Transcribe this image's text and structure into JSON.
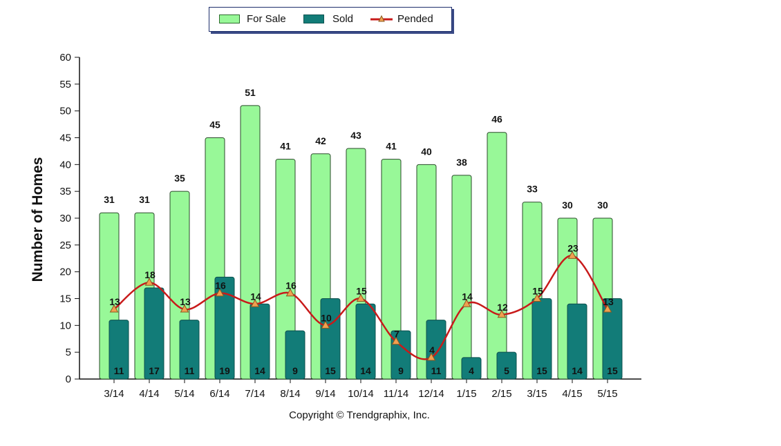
{
  "chart_data": {
    "type": "bar",
    "categories": [
      "3/14",
      "4/14",
      "5/14",
      "6/14",
      "7/14",
      "8/14",
      "9/14",
      "10/14",
      "11/14",
      "12/14",
      "1/15",
      "2/15",
      "3/15",
      "4/15",
      "5/15"
    ],
    "series": [
      {
        "name": "For Sale",
        "type": "bar",
        "color": "#98f898",
        "values": [
          31,
          31,
          35,
          45,
          51,
          41,
          42,
          43,
          41,
          40,
          38,
          46,
          33,
          30,
          30
        ]
      },
      {
        "name": "Sold",
        "type": "bar",
        "color": "#127c78",
        "values": [
          11,
          17,
          11,
          19,
          14,
          9,
          15,
          14,
          9,
          11,
          4,
          5,
          15,
          14,
          15
        ]
      },
      {
        "name": "Pended",
        "type": "line",
        "color": "#c81a1a",
        "marker": "triangle",
        "marker_color": "#f0a050",
        "values": [
          13,
          18,
          13,
          16,
          14,
          16,
          10,
          15,
          7,
          4,
          14,
          12,
          15,
          23,
          13
        ]
      }
    ],
    "ylabel": "Number of Homes",
    "xlabel": "",
    "ylim": [
      0,
      60
    ],
    "yticks": [
      0,
      5,
      10,
      15,
      20,
      25,
      30,
      35,
      40,
      45,
      50,
      55,
      60
    ],
    "grid": false,
    "legend_position": "top-center"
  },
  "legend": {
    "for_sale": "For Sale",
    "sold": "Sold",
    "pended": "Pended"
  },
  "footer": {
    "copyright": "Copyright © Trendgraphix, Inc."
  }
}
